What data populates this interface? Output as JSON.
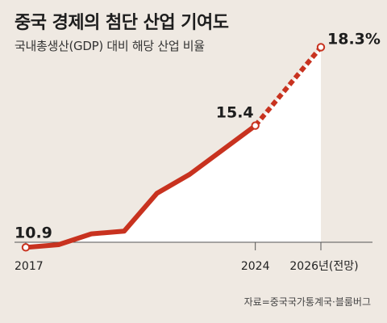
{
  "title": "중국 경제의 첨단 산업 기여도",
  "subtitle": "국내총생산(GDP) 대비 해당 산업 비율",
  "source": "자료=중국국가통계국·블룸버그",
  "colors": {
    "background": "#efe9e2",
    "line": "#c8321f",
    "area": "#ffffff",
    "text": "#1d1d1d"
  },
  "chart_data": {
    "type": "line",
    "title": "중국 경제의 첨단 산업 기여도",
    "subtitle": "국내총생산(GDP) 대비 해당 산업 비율",
    "x": [
      2017,
      2018,
      2019,
      2020,
      2021,
      2022,
      2023,
      2024,
      2026
    ],
    "values": [
      10.9,
      11.0,
      11.4,
      11.5,
      12.9,
      13.6,
      14.5,
      15.4,
      18.3
    ],
    "projected_from": 2024,
    "ylim": [
      9.0,
      19.0
    ],
    "x_ticks": [
      {
        "x": 2017,
        "label": "2017"
      },
      {
        "x": 2024,
        "label": "2024"
      },
      {
        "x": 2026,
        "label": "2026년(전망)"
      }
    ],
    "data_labels": [
      {
        "x": 2017,
        "label": "10.9"
      },
      {
        "x": 2024,
        "label": "15.4"
      },
      {
        "x": 2026,
        "label": "18.3%"
      }
    ],
    "grid": false
  }
}
